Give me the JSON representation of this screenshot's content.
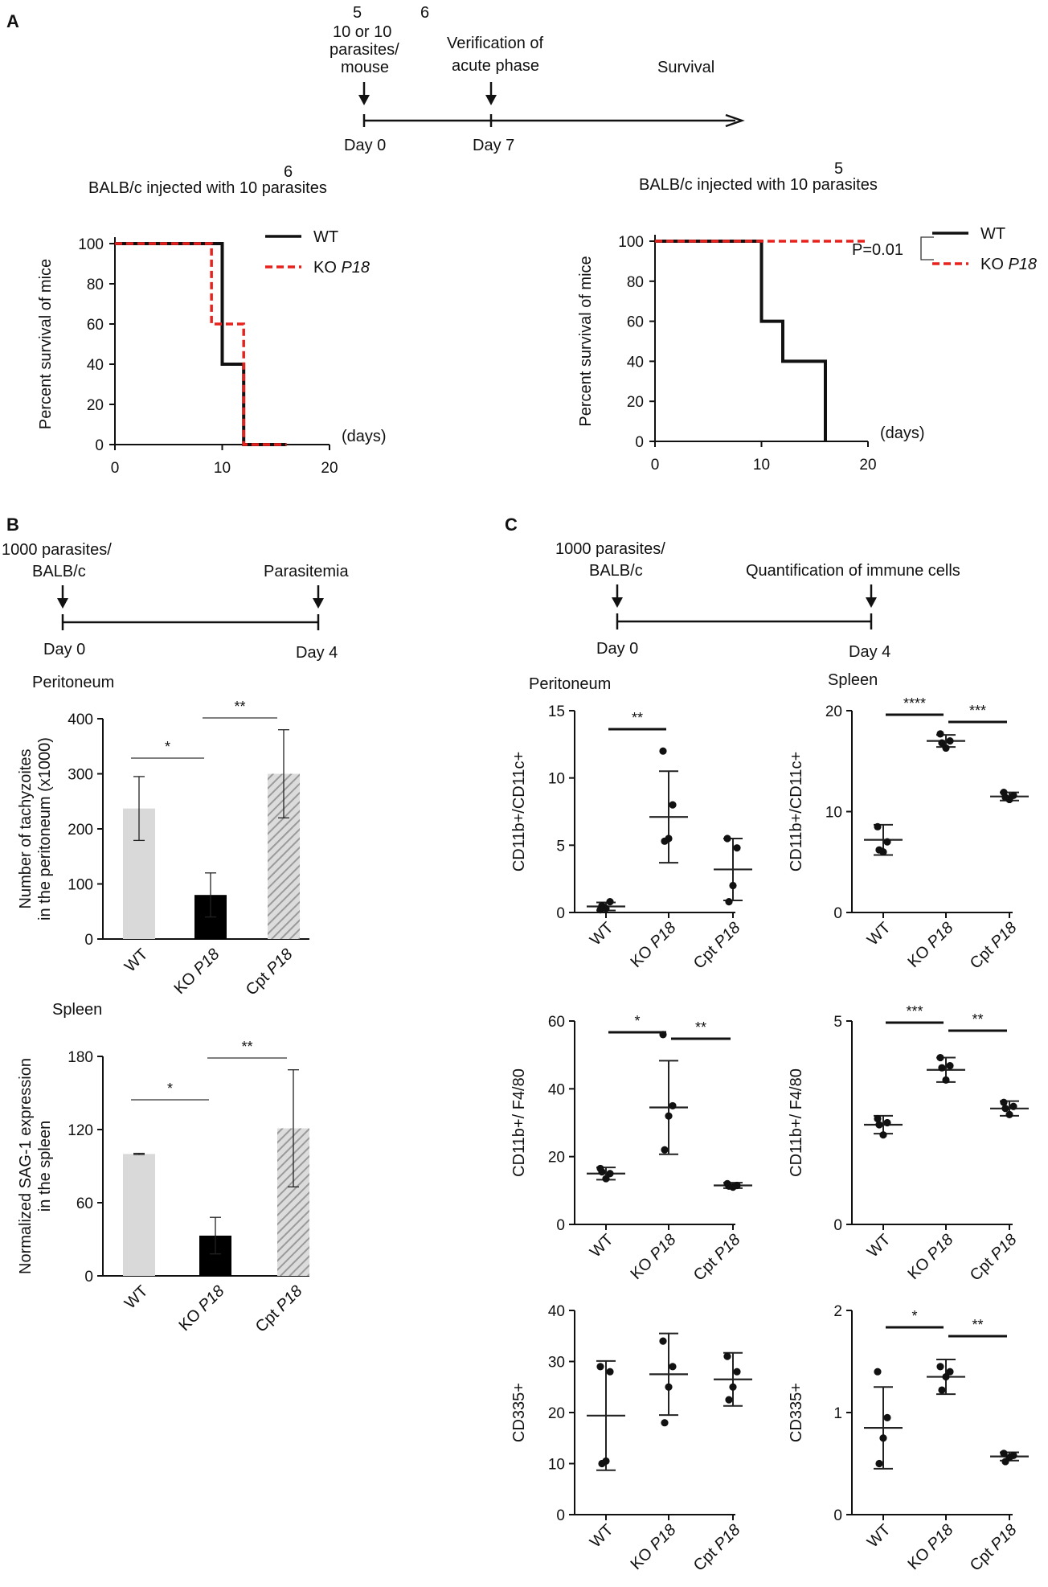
{
  "colors": {
    "wt_line": "#111111",
    "ko_line": "#e8211d",
    "wt_bar": "#d9d9d9",
    "ko_bar": "#000000",
    "cpt_bar": "#a8a8a8"
  },
  "panel_a": {
    "letter": "A",
    "timeline": {
      "inoculum": {
        "exp1": "5",
        "exp2": "6",
        "line1": "10 or 10",
        "line2": "parasites/",
        "line3": "mouse"
      },
      "verification": {
        "line1": "Verification of",
        "line2": "acute phase"
      },
      "survival": "Survival",
      "day0": "Day 0",
      "day7": "Day 7"
    }
  },
  "panel_b": {
    "letter": "B",
    "timeline": {
      "inoc_line1": "1000 parasites/",
      "inoc_line2": "BALB/c",
      "endpoint": "Parasitemia",
      "day0": "Day 0",
      "day4": "Day 4"
    }
  },
  "panel_c": {
    "letter": "C",
    "timeline": {
      "inoc_line1": "1000 parasites/",
      "inoc_line2": "BALB/c",
      "endpoint": "Quantification of immune cells",
      "day0": "Day 0",
      "day4": "Day 4"
    },
    "col_titles": {
      "left": "Peritoneum",
      "right": "Spleen"
    }
  },
  "chart_data": [
    {
      "id": "a1",
      "type": "line",
      "subtype": "survival-step",
      "title": "BALB/c injected with 10",
      "title_exp": "6",
      "title_tail": "parasites",
      "ylabel": "Percent survival of mice",
      "xlabel": "(days)",
      "xlim": [
        0,
        20
      ],
      "ylim": [
        0,
        100
      ],
      "xticks": [
        "0",
        "10",
        "20"
      ],
      "yticks": [
        "0",
        "20",
        "40",
        "60",
        "80",
        "100"
      ],
      "legend": {
        "position": "top-right",
        "wt": "WT",
        "ko_prefix": "KO ",
        "ko_gene": "P18"
      },
      "series": [
        {
          "name": "WT",
          "x": [
            0,
            10,
            10,
            11,
            11,
            12,
            12,
            16
          ],
          "y": [
            100,
            100,
            40,
            40,
            40,
            40,
            0,
            0
          ]
        },
        {
          "name": "KO P18",
          "x": [
            0,
            9,
            9,
            12,
            12,
            16
          ],
          "y": [
            100,
            100,
            60,
            60,
            0,
            0
          ]
        }
      ]
    },
    {
      "id": "a2",
      "type": "line",
      "subtype": "survival-step",
      "title": "BALB/c injected with 10",
      "title_exp": "5",
      "title_tail": "parasites",
      "ylabel": "Percent survival of mice",
      "xlabel": "(days)",
      "xlim": [
        0,
        20
      ],
      "ylim": [
        0,
        100
      ],
      "xticks": [
        "0",
        "10",
        "20"
      ],
      "yticks": [
        "0",
        "20",
        "40",
        "60",
        "80",
        "100"
      ],
      "legend": {
        "position": "top-right",
        "wt": "WT",
        "ko_prefix": "KO ",
        "ko_gene": "P18"
      },
      "annotation": "P=0.01",
      "series": [
        {
          "name": "WT",
          "x": [
            0,
            10,
            10,
            12,
            12,
            16,
            16
          ],
          "y": [
            100,
            100,
            60,
            60,
            40,
            40,
            0
          ]
        },
        {
          "name": "KO P18",
          "x": [
            0,
            20
          ],
          "y": [
            100,
            100
          ]
        }
      ]
    },
    {
      "id": "b1",
      "type": "bar",
      "section": "Peritoneum",
      "ylabel_line1": "Number of tachyzoites",
      "ylabel_line2": "in the peritoneum (x1000)",
      "ylim": [
        0,
        400
      ],
      "yticks": [
        "0",
        "100",
        "200",
        "300",
        "400"
      ],
      "categories": [
        {
          "prefix": "",
          "gene": "WT"
        },
        {
          "prefix": "KO ",
          "gene": "P18"
        },
        {
          "prefix": "Cpt ",
          "gene": "P18"
        }
      ],
      "values": [
        237,
        80,
        300
      ],
      "errors": [
        58,
        40,
        80
      ],
      "significance": [
        {
          "from": 0,
          "to": 1,
          "label": "*"
        },
        {
          "from": 1,
          "to": 2,
          "label": "**"
        }
      ]
    },
    {
      "id": "b2",
      "type": "bar",
      "section": "Spleen",
      "ylabel_line1": "Normalized SAG-1 expression",
      "ylabel_line2": "in the spleen",
      "ylim": [
        0,
        180
      ],
      "yticks": [
        "0",
        "60",
        "120",
        "180"
      ],
      "categories": [
        {
          "prefix": "",
          "gene": "WT"
        },
        {
          "prefix": "KO ",
          "gene": "P18"
        },
        {
          "prefix": "Cpt ",
          "gene": "P18"
        }
      ],
      "values": [
        100,
        33,
        121
      ],
      "errors": [
        0.5,
        15,
        48
      ],
      "significance": [
        {
          "from": 0,
          "to": 1,
          "label": "*"
        },
        {
          "from": 1,
          "to": 2,
          "label": "**"
        }
      ]
    },
    {
      "id": "c1",
      "type": "scatter",
      "ylabel": "CD11b+/CD11c+",
      "ylim": [
        0,
        15
      ],
      "yticks": [
        "0",
        "5",
        "10",
        "15"
      ],
      "categories": [
        {
          "prefix": "",
          "gene": "WT"
        },
        {
          "prefix": "KO ",
          "gene": "P18"
        },
        {
          "prefix": "Cpt ",
          "gene": "P18"
        }
      ],
      "points": [
        [
          0.2,
          0.8,
          0.3,
          0.5
        ],
        [
          12.0,
          8.0,
          5.5,
          5.3
        ],
        [
          5.5,
          4.8,
          2.0,
          0.8
        ]
      ],
      "means": [
        0.45,
        7.1,
        3.2
      ],
      "sd": [
        0.3,
        3.4,
        2.3
      ],
      "significance": [
        {
          "from": 0,
          "to": 1,
          "label": "**"
        }
      ]
    },
    {
      "id": "c2",
      "type": "scatter",
      "ylabel": "CD11b+/CD11c+",
      "ylim": [
        0,
        20
      ],
      "yticks": [
        "0",
        "10",
        "20"
      ],
      "categories": [
        {
          "prefix": "",
          "gene": "WT"
        },
        {
          "prefix": "KO ",
          "gene": "P18"
        },
        {
          "prefix": "Cpt ",
          "gene": "P18"
        }
      ],
      "points": [
        [
          8.5,
          7.0,
          6.0,
          6.2
        ],
        [
          17.7,
          17.0,
          16.3,
          16.8
        ],
        [
          11.9,
          11.6,
          11.2,
          11.4
        ]
      ],
      "means": [
        7.2,
        17.0,
        11.5
      ],
      "sd": [
        1.5,
        0.6,
        0.4
      ],
      "significance": [
        {
          "from": 0,
          "to": 1,
          "label": "****"
        },
        {
          "from": 1,
          "to": 2,
          "label": "***"
        }
      ]
    },
    {
      "id": "c3",
      "type": "scatter",
      "ylabel": "CD11b+/ F4/80",
      "ylim": [
        0,
        60
      ],
      "yticks": [
        "0",
        "20",
        "40",
        "60"
      ],
      "categories": [
        {
          "prefix": "",
          "gene": "WT"
        },
        {
          "prefix": "KO ",
          "gene": "P18"
        },
        {
          "prefix": "Cpt ",
          "gene": "P18"
        }
      ],
      "points": [
        [
          16.5,
          15.0,
          13.5,
          15.5
        ],
        [
          56.0,
          35.0,
          32.0,
          22.0
        ],
        [
          12.0,
          11.5,
          11.0,
          11.3
        ]
      ],
      "means": [
        15.0,
        34.5,
        11.5
      ],
      "sd": [
        1.8,
        13.8,
        0.8
      ],
      "significance": [
        {
          "from": 0,
          "to": 1,
          "label": "*"
        },
        {
          "from": 1,
          "to": 2,
          "label": "**"
        }
      ]
    },
    {
      "id": "c4",
      "type": "scatter",
      "ylabel": "CD11b+/ F4/80",
      "ylim": [
        0,
        5
      ],
      "yticks": [
        "0",
        "5"
      ],
      "categories": [
        {
          "prefix": "",
          "gene": "WT"
        },
        {
          "prefix": "KO ",
          "gene": "P18"
        },
        {
          "prefix": "Cpt ",
          "gene": "P18"
        }
      ],
      "points": [
        [
          2.6,
          2.5,
          2.2,
          2.45
        ],
        [
          4.1,
          3.9,
          3.55,
          3.85
        ],
        [
          3.0,
          2.9,
          2.7,
          2.85
        ]
      ],
      "means": [
        2.45,
        3.8,
        2.85
      ],
      "sd": [
        0.22,
        0.3,
        0.18
      ],
      "significance": [
        {
          "from": 0,
          "to": 1,
          "label": "***"
        },
        {
          "from": 1,
          "to": 2,
          "label": "**"
        }
      ]
    },
    {
      "id": "c5",
      "type": "scatter",
      "ylabel": "CD335+",
      "ylim": [
        0,
        40
      ],
      "yticks": [
        "0",
        "10",
        "20",
        "30",
        "40"
      ],
      "categories": [
        {
          "prefix": "",
          "gene": "WT"
        },
        {
          "prefix": "KO ",
          "gene": "P18"
        },
        {
          "prefix": "Cpt ",
          "gene": "P18"
        }
      ],
      "points": [
        [
          29.0,
          28.0,
          10.5,
          10.0
        ],
        [
          34.0,
          29.0,
          25.0,
          18.0
        ],
        [
          31.0,
          28.0,
          25.0,
          22.5
        ]
      ],
      "means": [
        19.4,
        27.5,
        26.5
      ],
      "sd": [
        10.7,
        8.0,
        5.2
      ],
      "significance": []
    },
    {
      "id": "c6",
      "type": "scatter",
      "ylabel": "CD335+",
      "ylim": [
        0,
        2
      ],
      "yticks": [
        "0",
        "1",
        "2"
      ],
      "categories": [
        {
          "prefix": "",
          "gene": "WT"
        },
        {
          "prefix": "KO ",
          "gene": "P18"
        },
        {
          "prefix": "Cpt ",
          "gene": "P18"
        }
      ],
      "points": [
        [
          1.4,
          0.95,
          0.75,
          0.5
        ],
        [
          1.45,
          1.4,
          1.35,
          1.22
        ],
        [
          0.6,
          0.58,
          0.56,
          0.52
        ]
      ],
      "means": [
        0.85,
        1.35,
        0.57
      ],
      "sd": [
        0.4,
        0.17,
        0.04
      ],
      "significance": [
        {
          "from": 0,
          "to": 1,
          "label": "*"
        },
        {
          "from": 1,
          "to": 2,
          "label": "**"
        }
      ]
    }
  ]
}
